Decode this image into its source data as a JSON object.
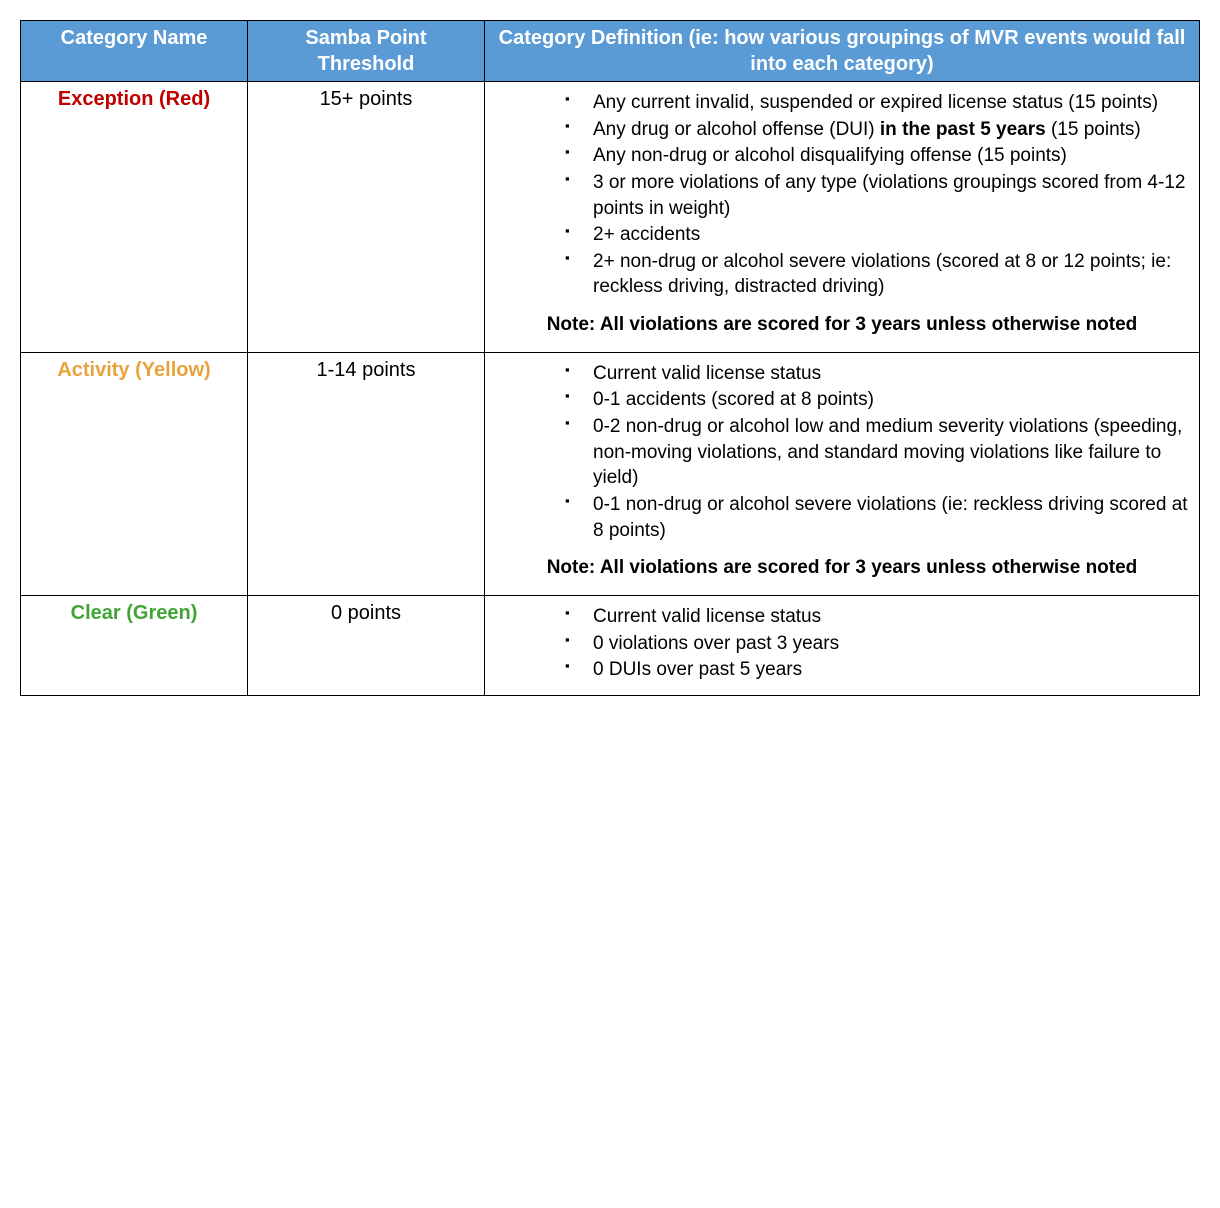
{
  "colors": {
    "header_bg": "#5b9bd5",
    "header_text": "#ffffff",
    "border": "#000000",
    "red": "#c00000",
    "yellow": "#e8a33d",
    "green": "#3fa535",
    "text": "#000000",
    "background": "#ffffff"
  },
  "columns": {
    "name": "Category Name",
    "threshold": "Samba Point Threshold",
    "definition": "Category Definition (ie: how various groupings of MVR events would fall into each category)"
  },
  "rows": [
    {
      "name": "Exception (Red)",
      "name_color": "red",
      "threshold": "15+ points",
      "items": [
        {
          "text_pre": "Any current invalid, suspended or expired license status (15 points)"
        },
        {
          "text_pre": "Any drug or alcohol offense (DUI) ",
          "bold": "in the past 5 years",
          "text_post": " (15 points)"
        },
        {
          "text_pre": "Any non-drug or alcohol disqualifying offense (15 points)"
        },
        {
          "text_pre": "3 or more violations of any type (violations groupings scored from 4-12 points in weight)"
        },
        {
          "text_pre": "2+ accidents"
        },
        {
          "text_pre": "2+ non-drug or alcohol severe violations (scored at 8 or 12 points; ie: reckless driving, distracted driving)"
        }
      ],
      "note": "Note: All violations are scored for 3 years unless otherwise noted"
    },
    {
      "name": "Activity (Yellow)",
      "name_color": "yellow",
      "threshold": "1-14 points",
      "items": [
        {
          "text_pre": "Current valid license status"
        },
        {
          "text_pre": "0-1 accidents (scored at 8 points)"
        },
        {
          "text_pre": "0-2 non-drug or alcohol low and medium severity violations (speeding, non-moving violations, and standard moving violations like failure to yield)"
        },
        {
          "text_pre": "0-1 non-drug or alcohol severe violations (ie: reckless driving scored at 8 points)"
        }
      ],
      "note": "Note: All violations are scored for 3 years unless otherwise noted"
    },
    {
      "name": "Clear (Green)",
      "name_color": "green",
      "threshold": "0 points",
      "items": [
        {
          "text_pre": "Current valid license status"
        },
        {
          "text_pre": "0 violations over past 3 years"
        },
        {
          "text_pre": "0 DUIs over past 5 years"
        }
      ],
      "note": null
    }
  ]
}
